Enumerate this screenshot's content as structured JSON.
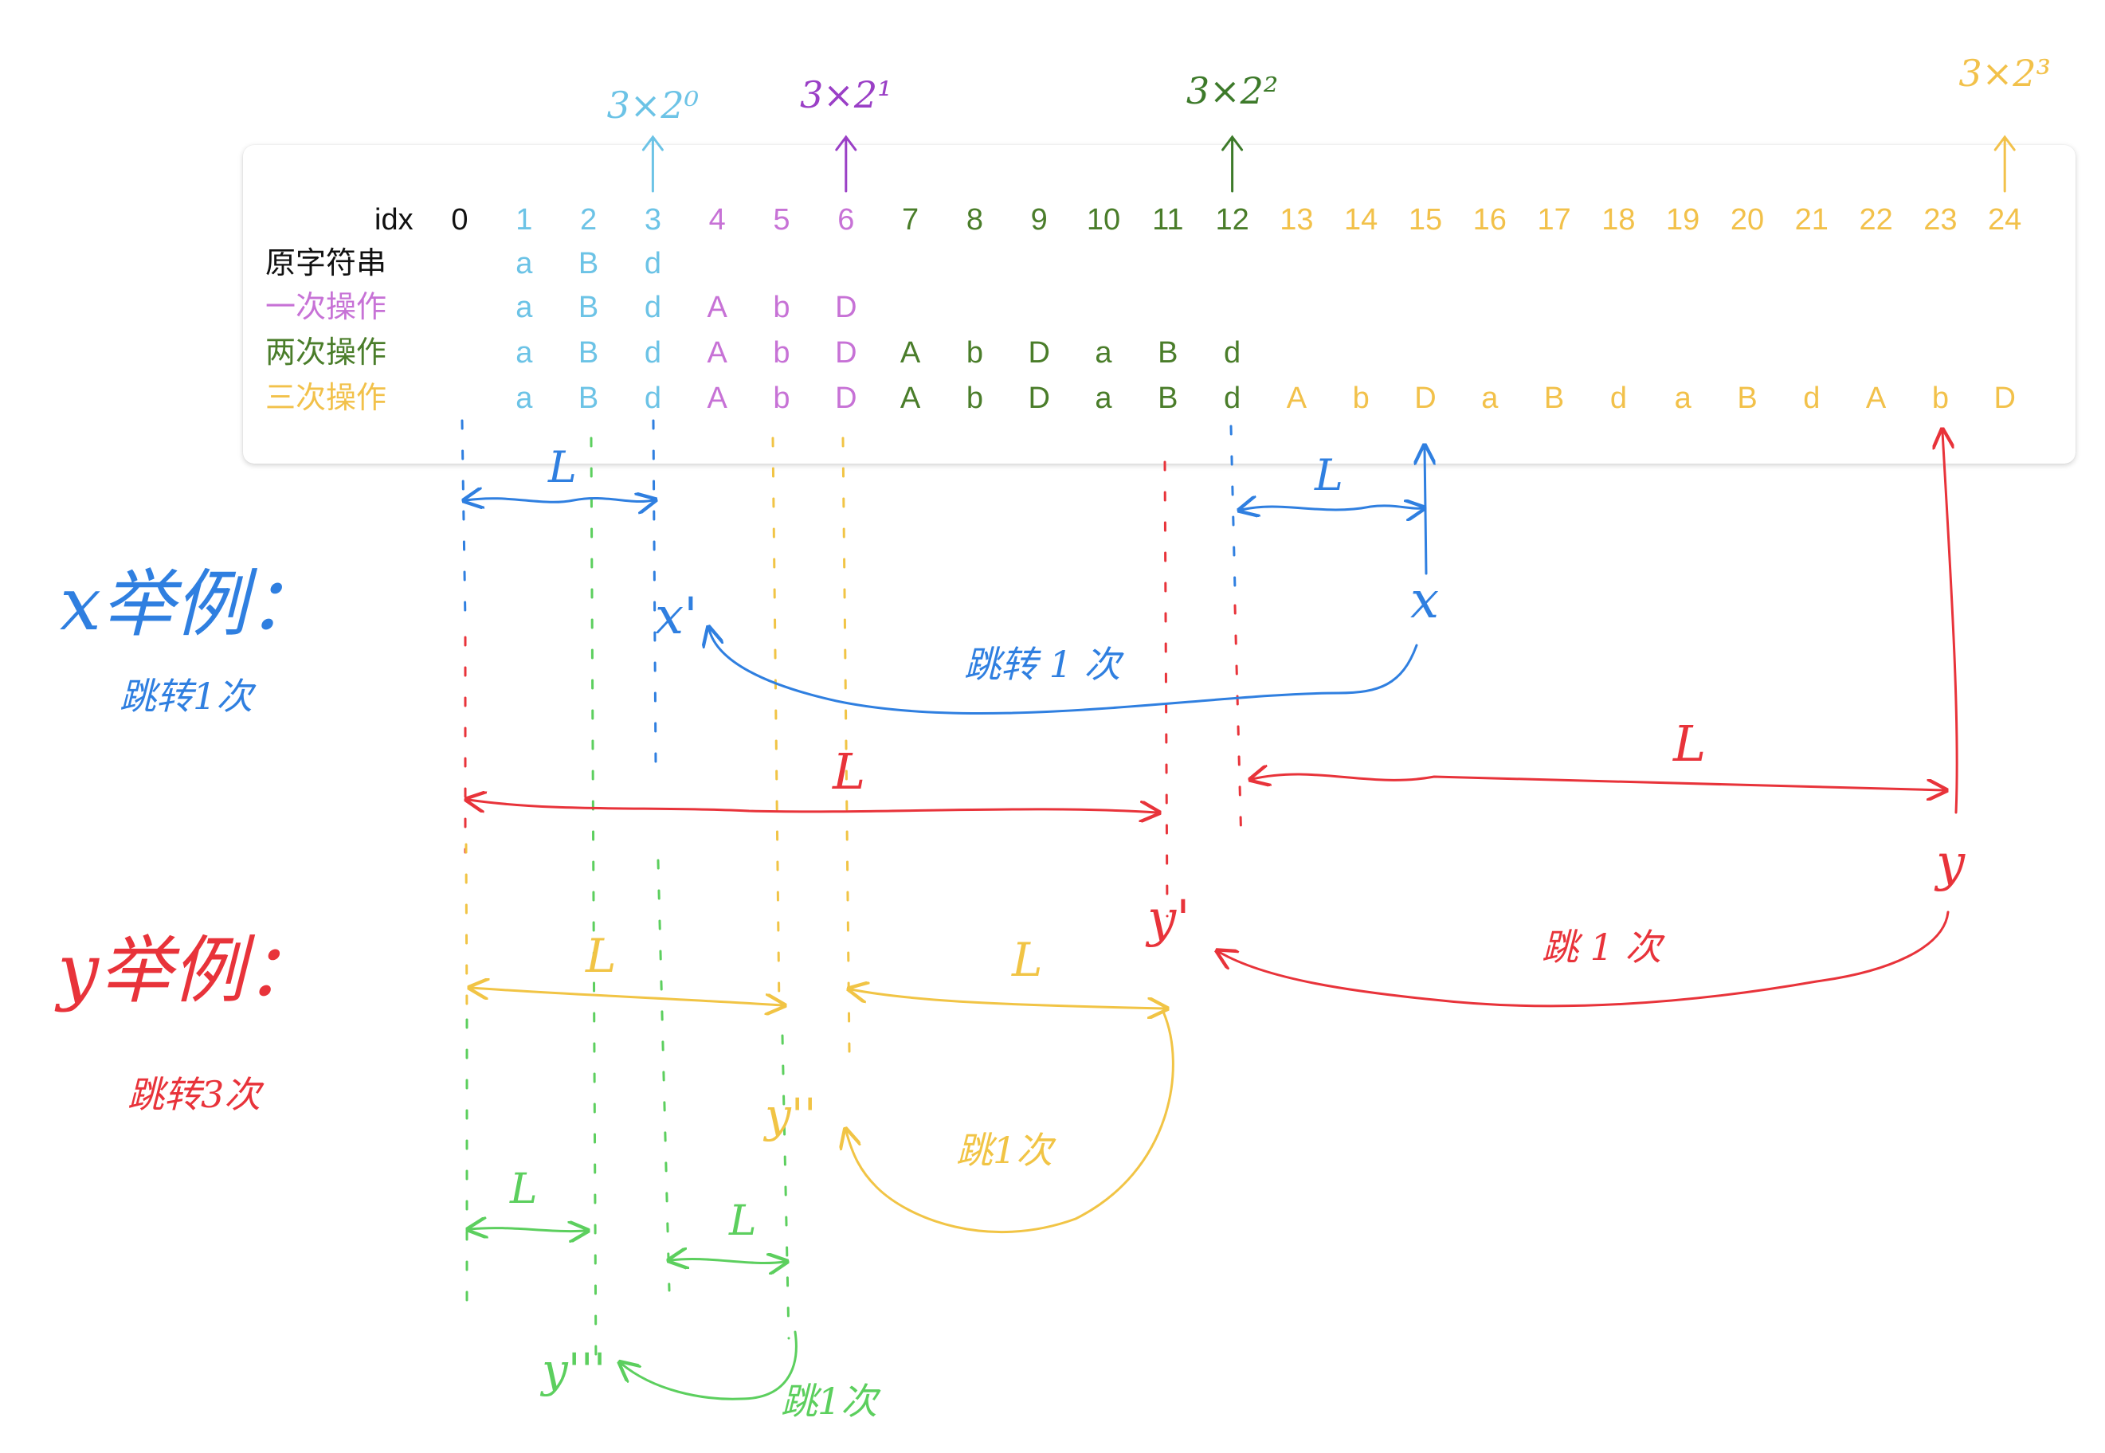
{
  "colors": {
    "black": "#111111",
    "row1": "#6cc3e6",
    "row2": "#c772d6",
    "row3": "#4a7d2a",
    "row4": "#f2c14a",
    "blue": "#2f7fe0",
    "red": "#e8333a",
    "yellow": "#f1c445",
    "green": "#5ccf5e",
    "purple": "#9a3fc6",
    "olive": "#3d7a2a"
  },
  "table": {
    "idx_label": "idx",
    "indices": [
      "0",
      "1",
      "2",
      "3",
      "4",
      "5",
      "6",
      "7",
      "8",
      "9",
      "10",
      "11",
      "12",
      "13",
      "14",
      "15",
      "16",
      "17",
      "18",
      "19",
      "20",
      "21",
      "22",
      "23",
      "24"
    ],
    "rows": [
      {
        "label": "原字符串",
        "chars": [
          "a",
          "B",
          "d"
        ]
      },
      {
        "label": "一次操作",
        "chars": [
          "a",
          "B",
          "d",
          "A",
          "b",
          "D"
        ]
      },
      {
        "label": "两次操作",
        "chars": [
          "a",
          "B",
          "d",
          "A",
          "b",
          "D",
          "A",
          "b",
          "D",
          "a",
          "B",
          "d"
        ]
      },
      {
        "label": "三次操作",
        "chars": [
          "a",
          "B",
          "d",
          "A",
          "b",
          "D",
          "A",
          "b",
          "D",
          "a",
          "B",
          "d",
          "A",
          "b",
          "D",
          "a",
          "B",
          "d",
          "a",
          "B",
          "d",
          "A",
          "b",
          "D"
        ]
      }
    ]
  },
  "markers": [
    {
      "text": "3×2⁰",
      "index": 3
    },
    {
      "text": "3×2¹",
      "index": 6
    },
    {
      "text": "3×2²",
      "index": 12
    },
    {
      "text": "3×2³",
      "index": 24
    }
  ],
  "annotations": {
    "x_example": "x举例：",
    "x_jump": "跳转1次",
    "y_example": "y举例：",
    "y_jump": "跳转3次",
    "jump_once_blue": "跳转 1 次",
    "jump_once_red": "跳 1 次",
    "jump_once_yellow": "跳1次",
    "jump_once_green": "跳1次",
    "L": "L",
    "x": "x",
    "x_prime": "x'",
    "y": "y",
    "y_prime": "y'",
    "y_double_prime": "y''",
    "y_triple_prime": "y'''"
  }
}
